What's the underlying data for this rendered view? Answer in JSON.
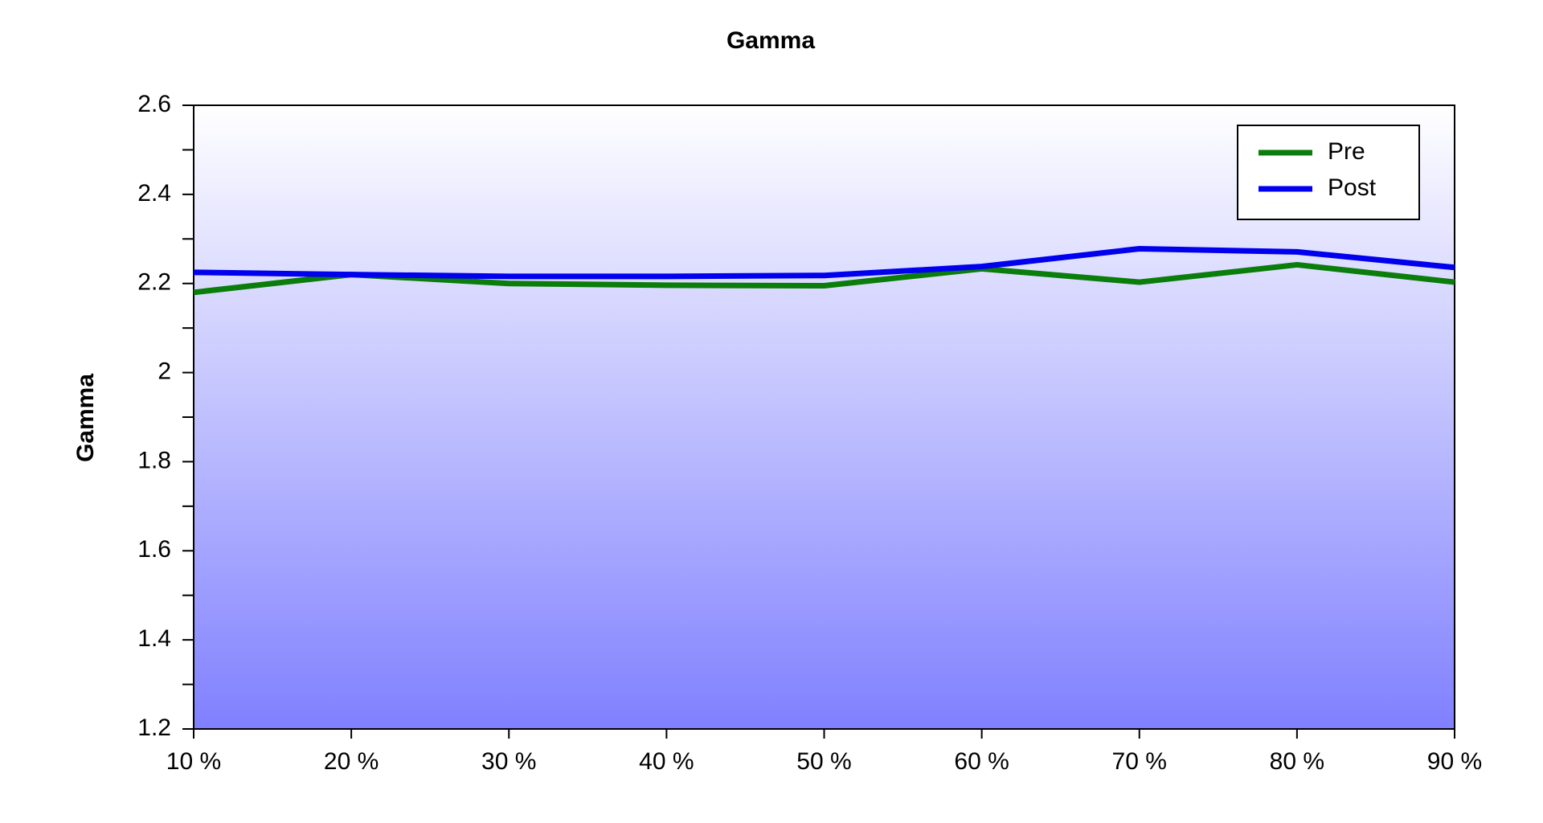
{
  "chart_data": {
    "type": "line",
    "title": "Gamma",
    "y_label": "Gamma",
    "categories": [
      "10 %",
      "20 %",
      "30 %",
      "40 %",
      "50 %",
      "60 %",
      "70 %",
      "80 %",
      "90 %"
    ],
    "series": [
      {
        "name": "Pre",
        "color": "#0a7d0a",
        "values": [
          2.18,
          2.22,
          2.2,
          2.196,
          2.195,
          2.233,
          2.203,
          2.242,
          2.203
        ]
      },
      {
        "name": "Post",
        "color": "#0000ee",
        "values": [
          2.225,
          2.22,
          2.216,
          2.216,
          2.218,
          2.238,
          2.278,
          2.271,
          2.236
        ]
      }
    ],
    "ylim": [
      1.2,
      2.6
    ],
    "yticks": [
      1.2,
      1.4,
      1.6,
      1.8,
      2,
      2.2,
      2.4,
      2.6
    ],
    "yminorticks": [
      1.3,
      1.5,
      1.7,
      1.9,
      2.1,
      2.3,
      2.5
    ],
    "legend": "upper right",
    "background_gradient": [
      "#ffffff",
      "#8080ff"
    ]
  }
}
